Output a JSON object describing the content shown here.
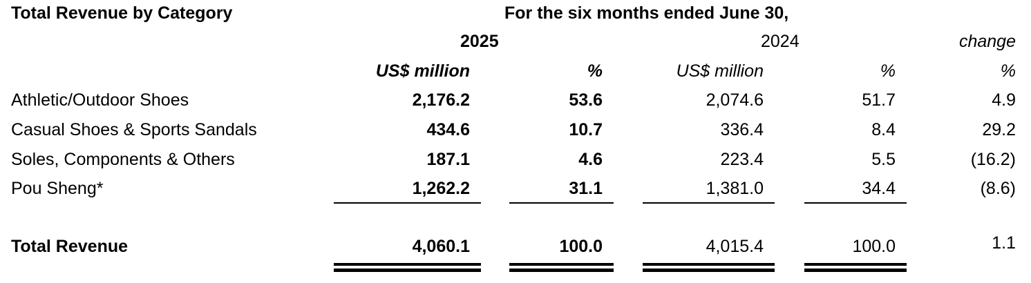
{
  "header": {
    "title": "Total Revenue by Category",
    "period": "For the six months ended June 30,",
    "years": [
      "2025",
      "2024",
      "change"
    ],
    "units": [
      "US$ million",
      "%",
      "US$ million",
      "%",
      "%"
    ]
  },
  "table": {
    "rows": [
      [
        "Athletic/Outdoor Shoes",
        "2,176.2",
        "53.6",
        "2,074.6",
        "51.7",
        "4.9"
      ],
      [
        "Casual Shoes & Sports Sandals",
        "434.6",
        "10.7",
        "336.4",
        "8.4",
        "29.2"
      ],
      [
        "Soles, Components & Others",
        "187.1",
        "4.6",
        "223.4",
        "5.5",
        "(16.2)"
      ],
      [
        "Pou Sheng*",
        "1,262.2",
        "31.1",
        "1,381.0",
        "34.4",
        "(8.6)"
      ]
    ],
    "total": [
      "Total Revenue",
      "4,060.1",
      "100.0",
      "4,015.4",
      "100.0",
      "1.1"
    ]
  }
}
